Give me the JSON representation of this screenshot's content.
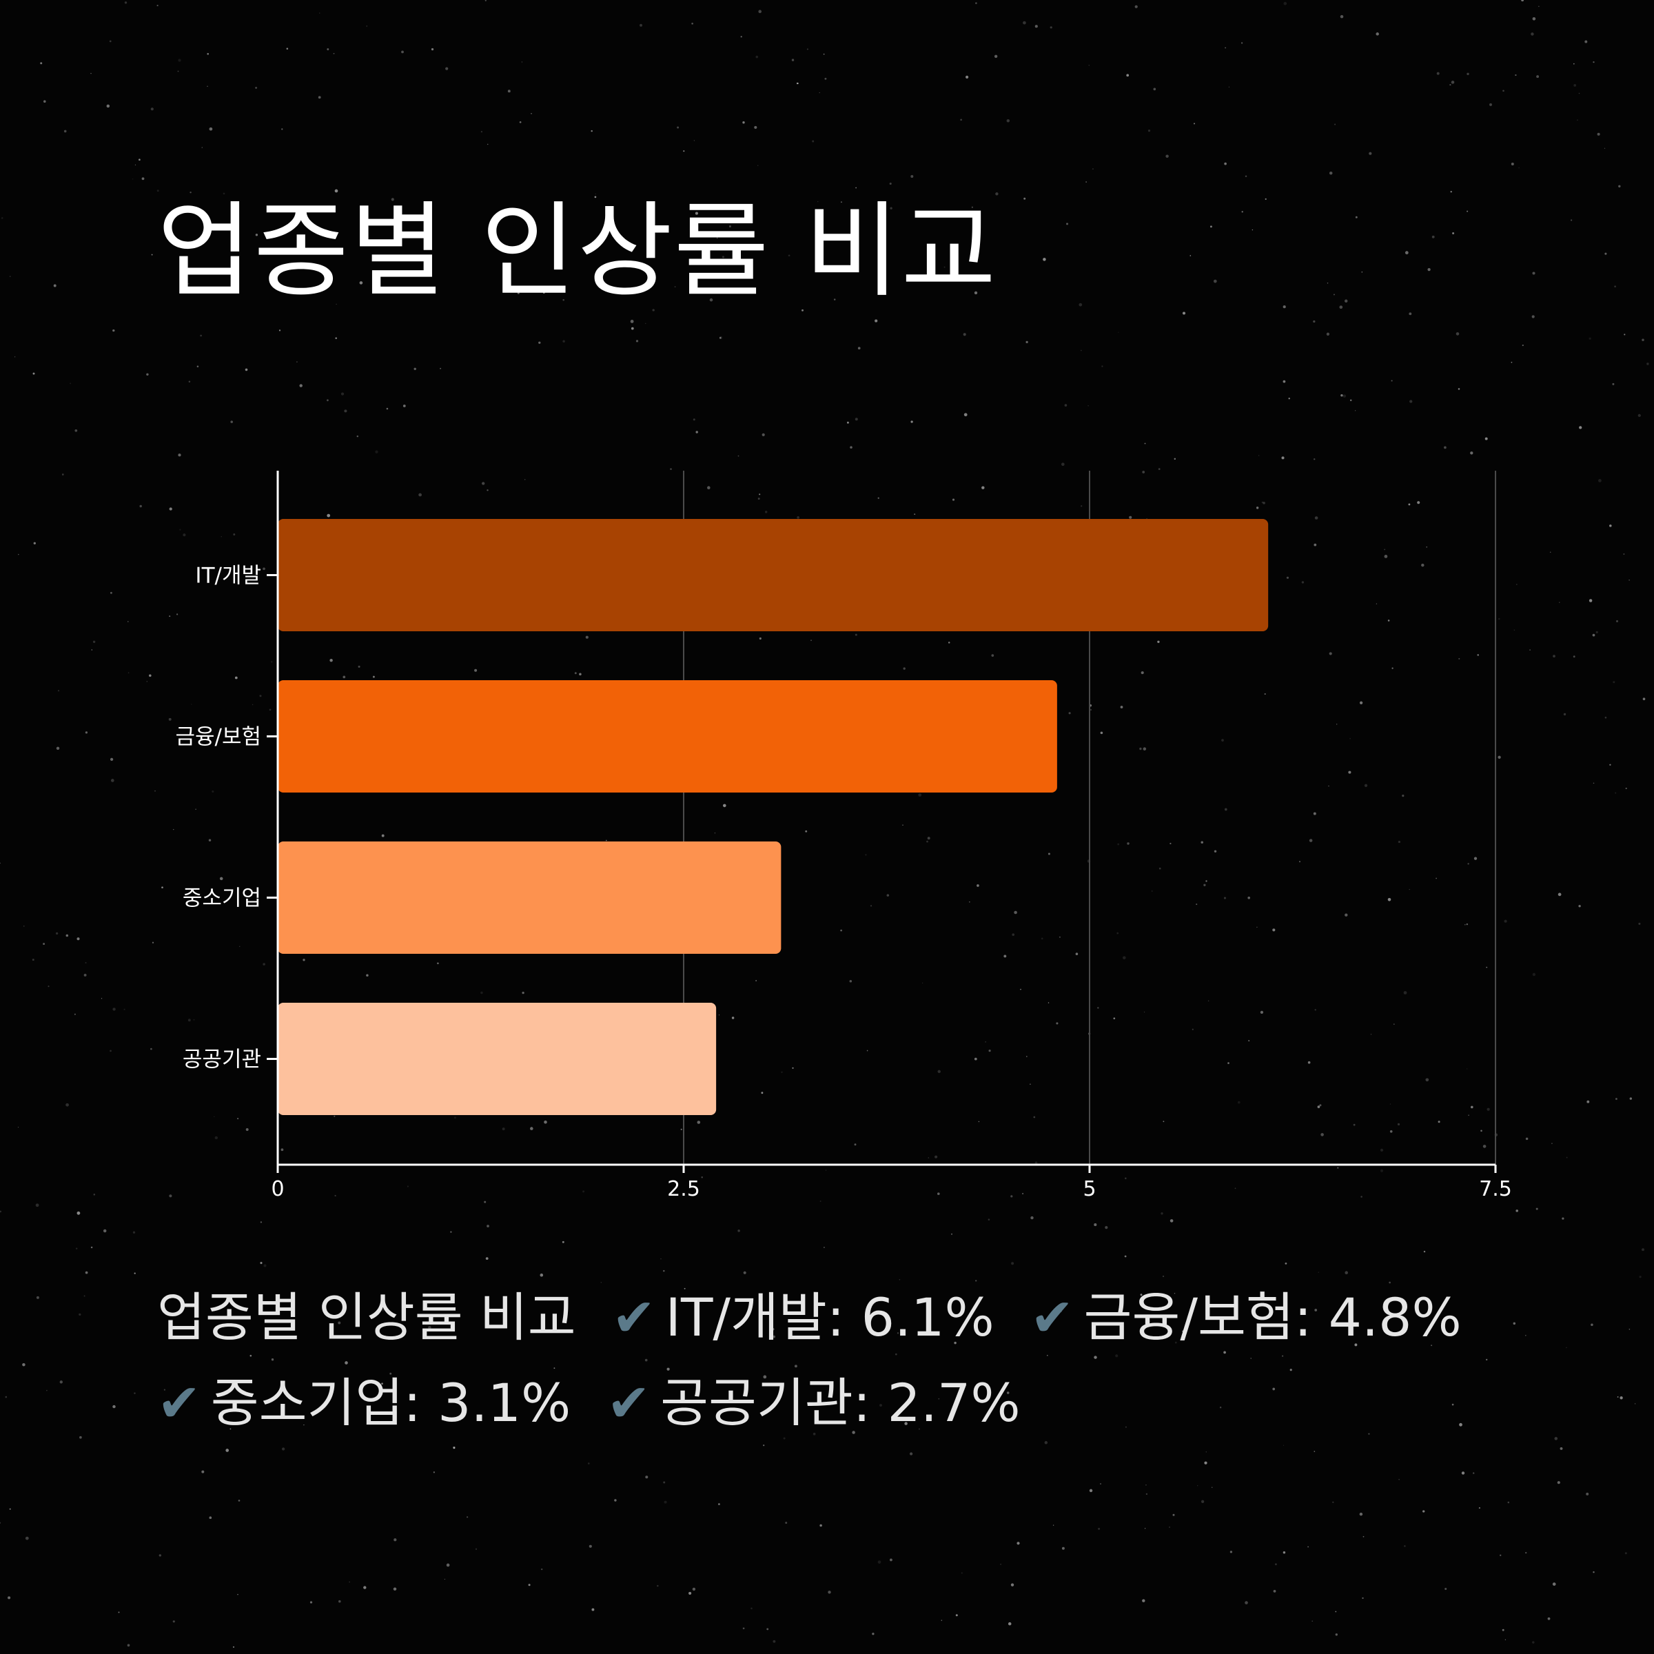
{
  "title": "업종별 인상률 비교",
  "chart_data": {
    "type": "bar",
    "orientation": "horizontal",
    "categories": [
      "IT/개발",
      "금융/보험",
      "중소기업",
      "공공기관"
    ],
    "values": [
      6.1,
      4.8,
      3.1,
      2.7
    ],
    "colors": [
      "#a84302",
      "#f26207",
      "#fd924f",
      "#fdc19d"
    ],
    "xlim": [
      0,
      7.5
    ],
    "xticks": [
      "0",
      "2.5",
      "5",
      "7.5"
    ],
    "grid": "vertical"
  },
  "summary": {
    "lead": "업종별 인상률 비교",
    "check_icon": "✔",
    "items": [
      "IT/개발: 6.1%",
      "금융/보험: 4.8%",
      "중소기업: 3.1%",
      "공공기관: 2.7%"
    ]
  },
  "colors": {
    "background": "#040404",
    "text": "#ffffff",
    "check": "#5b7a8a"
  }
}
